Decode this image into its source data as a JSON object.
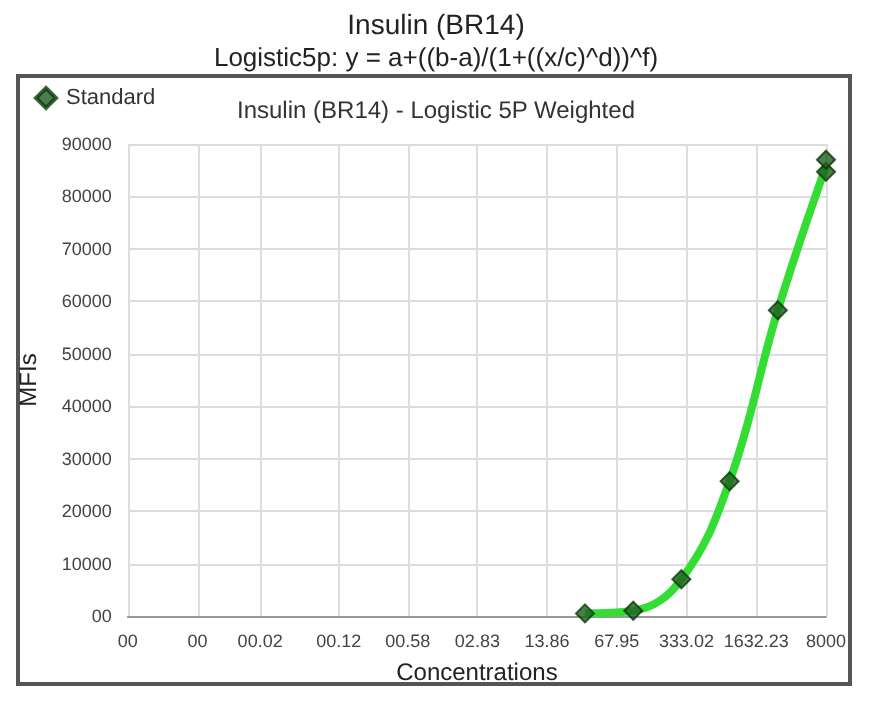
{
  "chart_data": {
    "type": "scatter",
    "title": "Insulin (BR14)",
    "subtitle": "Logistic5p: y = a+((b-a)/(1+((x/c)^d))^f)",
    "annotations": [
      "Insulin (BR14) - Logistic 5P Weighted"
    ],
    "xlabel": "Concentrations",
    "ylabel": "MFIs",
    "series": [
      {
        "name": "Standard",
        "color": "#1e5e1e",
        "marker": "diamond",
        "x": [
          32.9,
          98.8,
          296,
          889,
          2667,
          8000,
          8000
        ],
        "values": [
          500,
          1000,
          7000,
          25700,
          58300,
          84700,
          87000
        ]
      },
      {
        "type": "line",
        "color": "#33dd33",
        "marker": "none",
        "x": [
          32.9,
          98.8,
          296,
          889,
          2667,
          8000
        ],
        "values": [
          500,
          1000,
          7000,
          25700,
          58300,
          85800
        ]
      }
    ],
    "log": "x",
    "xlim": [
      0.00098,
      8000
    ],
    "xticks": [
      {
        "value": 0.00098,
        "label": "00"
      },
      {
        "value": 0.0048,
        "label": "00"
      },
      {
        "value": 0.02,
        "label": "00.02"
      },
      {
        "value": 0.12,
        "label": "00.12"
      },
      {
        "value": 0.58,
        "label": "00.58"
      },
      {
        "value": 2.83,
        "label": "02.83"
      },
      {
        "value": 13.86,
        "label": "13.86"
      },
      {
        "value": 67.95,
        "label": "67.95"
      },
      {
        "value": 333.02,
        "label": "333.02"
      },
      {
        "value": 1632.23,
        "label": "1632.23"
      },
      {
        "value": 8000,
        "label": "8000"
      }
    ],
    "ylim": [
      0,
      90000
    ],
    "yticks": [
      {
        "value": 0,
        "label": "00"
      },
      10000,
      20000,
      30000,
      40000,
      50000,
      60000,
      70000,
      80000,
      90000
    ],
    "grid": true,
    "legend": "top left"
  }
}
